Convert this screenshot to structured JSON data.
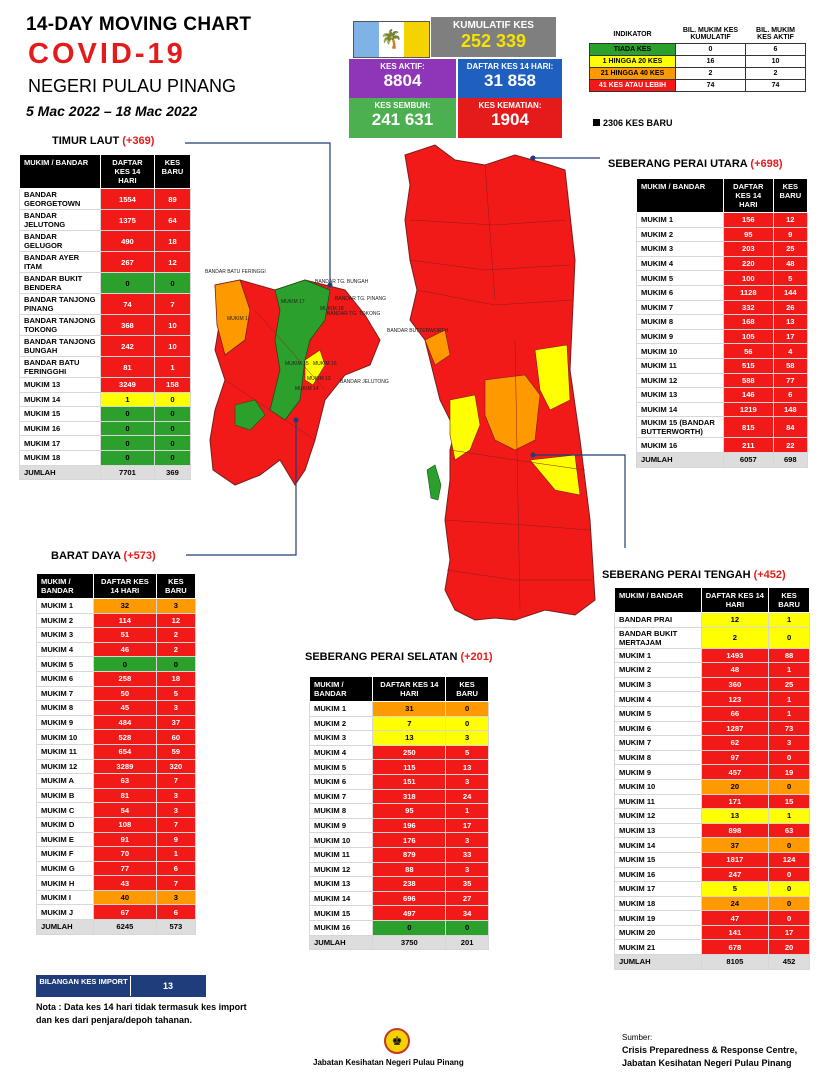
{
  "header": {
    "title": "14-DAY MOVING CHART",
    "subtitle": "COVID-19",
    "state": "NEGERI PULAU PINANG",
    "date_range": "5 Mac 2022 – 18 Mac 2022"
  },
  "stats": {
    "kumulatif_label": "KUMULATIF KES",
    "kumulatif_value": "252 339",
    "aktif_label": "KES AKTIF:",
    "aktif_value": "8804",
    "daftar_label": "DAFTAR KES 14 HARI:",
    "daftar_value": "31 858",
    "sembuh_label": "KES SEMBUH:",
    "sembuh_value": "241 631",
    "kematian_label": "KES KEMATIAN:",
    "kematian_value": "1904"
  },
  "legend": {
    "headers": [
      "INDIKATOR",
      "BIL. MUKIM KES KUMULATIF",
      "BIL. MUKIM KES AKTIF"
    ],
    "rows": [
      {
        "label": "TIADA KES",
        "kumulatif": "0",
        "aktif": "6",
        "color": "#2ca02c"
      },
      {
        "label": "1 HINGGA 20 KES",
        "kumulatif": "16",
        "aktif": "10",
        "color": "#ffff00"
      },
      {
        "label": "21 HINGGA 40 KES",
        "kumulatif": "2",
        "aktif": "2",
        "color": "#ff9900"
      },
      {
        "label": "41 KES ATAU LEBIH",
        "kumulatif": "74",
        "aktif": "74",
        "color": "#f21919"
      }
    ],
    "new_cases": "2306 KES BARU"
  },
  "colors": {
    "red": "#f21919",
    "yellow": "#ffff00",
    "orange": "#ff9900",
    "green": "#2ca02c",
    "purple": "#8e35b8",
    "blue": "#1f5fbf",
    "teal_green": "#4caf50",
    "navy": "#1f3d7a"
  },
  "regions": {
    "timur_laut": {
      "title": "TIMUR LAUT",
      "inc": "(+369)",
      "headers": [
        "MUKIM / BANDAR",
        "DAFTAR KES 14 HARI",
        "KES BARU"
      ],
      "rows": [
        [
          "BANDAR GEORGETOWN",
          "1554",
          "89",
          "red",
          "red"
        ],
        [
          "BANDAR JELUTONG",
          "1375",
          "64",
          "red",
          "red"
        ],
        [
          "BANDAR GELUGOR",
          "490",
          "18",
          "red",
          "red"
        ],
        [
          "BANDAR AYER ITAM",
          "267",
          "12",
          "red",
          "red"
        ],
        [
          "BANDAR BUKIT BENDERA",
          "0",
          "0",
          "grn",
          "grn"
        ],
        [
          "BANDAR TANJONG PINANG",
          "74",
          "7",
          "red",
          "red"
        ],
        [
          "BANDAR TANJONG TOKONG",
          "368",
          "10",
          "red",
          "red"
        ],
        [
          "BANDAR TANJONG BUNGAH",
          "242",
          "10",
          "red",
          "red"
        ],
        [
          "BANDAR BATU FERINGGHI",
          "81",
          "1",
          "red",
          "red"
        ],
        [
          "MUKIM 13",
          "3249",
          "158",
          "red",
          "red"
        ],
        [
          "MUKIM 14",
          "1",
          "0",
          "yel",
          "yel"
        ],
        [
          "MUKIM 15",
          "0",
          "0",
          "grn",
          "grn"
        ],
        [
          "MUKIM 16",
          "0",
          "0",
          "grn",
          "grn"
        ],
        [
          "MUKIM 17",
          "0",
          "0",
          "grn",
          "grn"
        ],
        [
          "MUKIM 18",
          "0",
          "0",
          "grn",
          "grn"
        ]
      ],
      "total": [
        "JUMLAH",
        "7701",
        "369"
      ]
    },
    "barat_daya": {
      "title": "BARAT DAYA",
      "inc": "(+573)",
      "headers": [
        "MUKIM / BANDAR",
        "DAFTAR KES 14 HARI",
        "KES BARU"
      ],
      "rows": [
        [
          "MUKIM 1",
          "32",
          "3",
          "ora",
          "ora"
        ],
        [
          "MUKIM 2",
          "114",
          "12",
          "red",
          "red"
        ],
        [
          "MUKIM 3",
          "51",
          "2",
          "red",
          "red"
        ],
        [
          "MUKIM 4",
          "46",
          "2",
          "red",
          "red"
        ],
        [
          "MUKIM 5",
          "0",
          "0",
          "grn",
          "grn"
        ],
        [
          "MUKIM 6",
          "258",
          "18",
          "red",
          "red"
        ],
        [
          "MUKIM 7",
          "50",
          "5",
          "red",
          "red"
        ],
        [
          "MUKIM 8",
          "45",
          "3",
          "red",
          "red"
        ],
        [
          "MUKIM 9",
          "484",
          "37",
          "red",
          "red"
        ],
        [
          "MUKIM 10",
          "528",
          "60",
          "red",
          "red"
        ],
        [
          "MUKIM 11",
          "654",
          "59",
          "red",
          "red"
        ],
        [
          "MUKIM 12",
          "3289",
          "320",
          "red",
          "red"
        ],
        [
          "MUKIM A",
          "63",
          "7",
          "red",
          "red"
        ],
        [
          "MUKIM B",
          "81",
          "3",
          "red",
          "red"
        ],
        [
          "MUKIM C",
          "54",
          "3",
          "red",
          "red"
        ],
        [
          "MUKIM D",
          "108",
          "7",
          "red",
          "red"
        ],
        [
          "MUKIM E",
          "91",
          "9",
          "red",
          "red"
        ],
        [
          "MUKIM F",
          "70",
          "1",
          "red",
          "red"
        ],
        [
          "MUKIM G",
          "77",
          "6",
          "red",
          "red"
        ],
        [
          "MUKIM H",
          "43",
          "7",
          "red",
          "red"
        ],
        [
          "MUKIM I",
          "40",
          "3",
          "ora",
          "ora"
        ],
        [
          "MUKIM J",
          "67",
          "6",
          "red",
          "red"
        ]
      ],
      "total": [
        "JUMLAH",
        "6245",
        "573"
      ]
    },
    "spu": {
      "title": "SEBERANG PERAI UTARA",
      "inc": "(+698)",
      "headers": [
        "MUKIM / BANDAR",
        "DAFTAR KES 14 HARI",
        "KES BARU"
      ],
      "rows": [
        [
          "MUKIM 1",
          "156",
          "12",
          "red",
          "red"
        ],
        [
          "MUKIM 2",
          "95",
          "9",
          "red",
          "red"
        ],
        [
          "MUKIM 3",
          "203",
          "25",
          "red",
          "red"
        ],
        [
          "MUKIM 4",
          "220",
          "48",
          "red",
          "red"
        ],
        [
          "MUKIM 5",
          "100",
          "5",
          "red",
          "red"
        ],
        [
          "MUKIM 6",
          "1128",
          "144",
          "red",
          "red"
        ],
        [
          "MUKIM 7",
          "332",
          "26",
          "red",
          "red"
        ],
        [
          "MUKIM 8",
          "168",
          "13",
          "red",
          "red"
        ],
        [
          "MUKIM 9",
          "105",
          "17",
          "red",
          "red"
        ],
        [
          "MUKIM 10",
          "56",
          "4",
          "red",
          "red"
        ],
        [
          "MUKIM 11",
          "515",
          "58",
          "red",
          "red"
        ],
        [
          "MUKIM 12",
          "588",
          "77",
          "red",
          "red"
        ],
        [
          "MUKIM 13",
          "146",
          "6",
          "red",
          "red"
        ],
        [
          "MUKIM 14",
          "1219",
          "148",
          "red",
          "red"
        ],
        [
          "MUKIM 15 (BANDAR BUTTERWORTH)",
          "815",
          "84",
          "red",
          "red"
        ],
        [
          "MUKIM 16",
          "211",
          "22",
          "red",
          "red"
        ]
      ],
      "total": [
        "JUMLAH",
        "6057",
        "698"
      ]
    },
    "spt": {
      "title": "SEBERANG PERAI TENGAH",
      "inc": "(+452)",
      "headers": [
        "MUKIM / BANDAR",
        "DAFTAR KES 14 HARI",
        "KES BARU"
      ],
      "rows": [
        [
          "BANDAR PRAI",
          "12",
          "1",
          "yel",
          "yel"
        ],
        [
          "BANDAR BUKIT MERTAJAM",
          "2",
          "0",
          "yel",
          "yel"
        ],
        [
          "MUKIM 1",
          "1493",
          "88",
          "red",
          "red"
        ],
        [
          "MUKIM 2",
          "48",
          "1",
          "red",
          "red"
        ],
        [
          "MUKIM 3",
          "360",
          "25",
          "red",
          "red"
        ],
        [
          "MUKIM 4",
          "123",
          "1",
          "red",
          "red"
        ],
        [
          "MUKIM 5",
          "66",
          "1",
          "red",
          "red"
        ],
        [
          "MUKIM 6",
          "1287",
          "73",
          "red",
          "red"
        ],
        [
          "MUKIM 7",
          "62",
          "3",
          "red",
          "red"
        ],
        [
          "MUKIM 8",
          "97",
          "0",
          "red",
          "red"
        ],
        [
          "MUKIM 9",
          "457",
          "19",
          "red",
          "red"
        ],
        [
          "MUKIM 10",
          "20",
          "0",
          "ora",
          "ora"
        ],
        [
          "MUKIM 11",
          "171",
          "15",
          "red",
          "red"
        ],
        [
          "MUKIM 12",
          "13",
          "1",
          "yel",
          "yel"
        ],
        [
          "MUKIM 13",
          "898",
          "63",
          "red",
          "red"
        ],
        [
          "MUKIM 14",
          "37",
          "0",
          "ora",
          "ora"
        ],
        [
          "MUKIM 15",
          "1817",
          "124",
          "red",
          "red"
        ],
        [
          "MUKIM 16",
          "247",
          "0",
          "red",
          "red"
        ],
        [
          "MUKIM 17",
          "5",
          "0",
          "yel",
          "yel"
        ],
        [
          "MUKIM 18",
          "24",
          "0",
          "ora",
          "ora"
        ],
        [
          "MUKIM 19",
          "47",
          "0",
          "red",
          "red"
        ],
        [
          "MUKIM 20",
          "141",
          "17",
          "red",
          "red"
        ],
        [
          "MUKIM 21",
          "678",
          "20",
          "red",
          "red"
        ]
      ],
      "total": [
        "JUMLAH",
        "8105",
        "452"
      ]
    },
    "sps": {
      "title": "SEBERANG PERAI SELATAN",
      "inc": "(+201)",
      "headers": [
        "MUKIM / BANDAR",
        "DAFTAR KES 14 HARI",
        "KES BARU"
      ],
      "rows": [
        [
          "MUKIM 1",
          "31",
          "0",
          "ora",
          "ora"
        ],
        [
          "MUKIM 2",
          "7",
          "0",
          "yel",
          "yel"
        ],
        [
          "MUKIM 3",
          "13",
          "3",
          "yel",
          "yel"
        ],
        [
          "MUKIM 4",
          "250",
          "5",
          "red",
          "red"
        ],
        [
          "MUKIM 5",
          "115",
          "13",
          "red",
          "red"
        ],
        [
          "MUKIM 6",
          "151",
          "3",
          "red",
          "red"
        ],
        [
          "MUKIM 7",
          "318",
          "24",
          "red",
          "red"
        ],
        [
          "MUKIM 8",
          "95",
          "1",
          "red",
          "red"
        ],
        [
          "MUKIM 9",
          "196",
          "17",
          "red",
          "red"
        ],
        [
          "MUKIM 10",
          "176",
          "3",
          "red",
          "red"
        ],
        [
          "MUKIM 11",
          "879",
          "33",
          "red",
          "red"
        ],
        [
          "MUKIM 12",
          "88",
          "3",
          "red",
          "red"
        ],
        [
          "MUKIM 13",
          "238",
          "35",
          "red",
          "red"
        ],
        [
          "MUKIM 14",
          "696",
          "27",
          "red",
          "red"
        ],
        [
          "MUKIM 15",
          "497",
          "34",
          "red",
          "red"
        ],
        [
          "MUKIM 16",
          "0",
          "0",
          "grn",
          "grn"
        ]
      ],
      "total": [
        "JUMLAH",
        "3750",
        "201"
      ]
    }
  },
  "map_labels": [
    "BANDAR BATU FERINGGI",
    "BANDAR TG. BUNGAH",
    "BANDAR TG. PINANG",
    "BANDAR TG. TOKONG",
    "BANDAR BUTTERWORTH",
    "BANDAR JELUTONG",
    "MUKIM 17",
    "MUKIM 18",
    "MUKIM 15",
    "MUKIM 16",
    "MUKIM 13",
    "MUKIM 14",
    "MUKIM 1"
  ],
  "import": {
    "label": "BILANGAN KES IMPORT",
    "value": "13"
  },
  "note": "Nota : Data kes 14 hari tidak termasuk kes import dan kes dari penjara/depoh tahanan.",
  "footer": {
    "agency": "Jabatan Kesihatan Negeri Pulau Pinang",
    "source_label": "Sumber:",
    "source_line1": "Crisis Preparedness & Response Centre,",
    "source_line2": "Jabatan Kesihatan Negeri Pulau Pinang"
  }
}
